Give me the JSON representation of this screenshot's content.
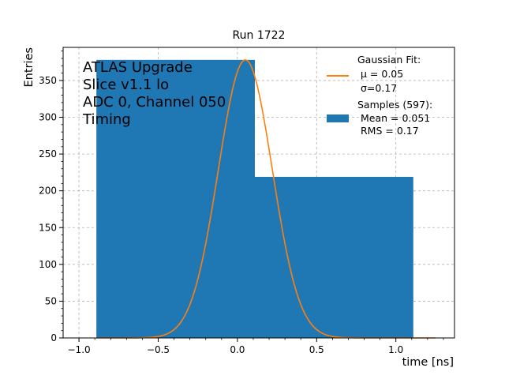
{
  "chart_data": {
    "type": "bar",
    "title": "Run 1722",
    "xlabel": "time [ns]",
    "ylabel": "Entries",
    "xlim": [
      -1.1,
      1.37
    ],
    "ylim": [
      0,
      395
    ],
    "xticks": [
      -1.0,
      -0.5,
      0.0,
      0.5,
      1.0
    ],
    "xtick_labels": [
      "−1.0",
      "−0.5",
      "0.0",
      "0.5",
      "1.0"
    ],
    "yticks": [
      0,
      50,
      100,
      150,
      200,
      250,
      300,
      350
    ],
    "ytick_labels": [
      "0",
      "50",
      "100",
      "150",
      "200",
      "250",
      "300",
      "350"
    ],
    "grid": true,
    "histogram": {
      "name": "Samples (597):",
      "color": "#1f77b4",
      "bins": [
        {
          "x0": -0.89,
          "x1": 0.11,
          "count": 378
        },
        {
          "x0": 0.11,
          "x1": 1.11,
          "count": 219
        }
      ]
    },
    "fit": {
      "type": "gaussian",
      "color": "#ff7f0e",
      "mu": 0.05,
      "sigma": 0.17,
      "amplitude": 378,
      "x_range": [
        -0.89,
        1.25
      ]
    },
    "annotation_lines": [
      "ATLAS Upgrade",
      "Slice v1.1 lo",
      "ADC 0, Channel 050",
      "Timing"
    ],
    "legend": {
      "placement": "top-right",
      "fit_lines": [
        "Gaussian Fit:",
        "μ = 0.05",
        "σ=0.17"
      ],
      "samples_lines": [
        "Samples (597):",
        "Mean = 0.051",
        "RMS = 0.17"
      ]
    }
  }
}
